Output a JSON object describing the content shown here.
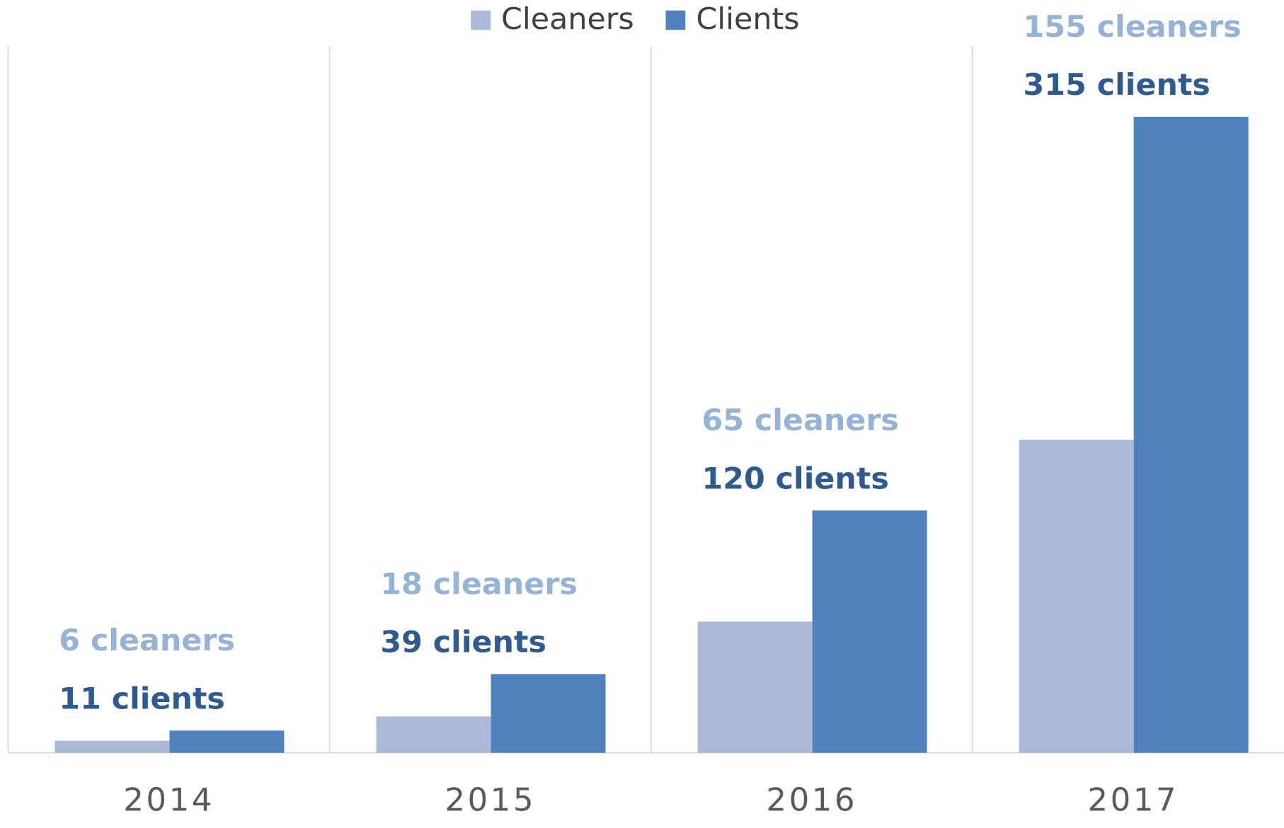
{
  "chart_data": {
    "type": "bar",
    "categories": [
      "2014",
      "2015",
      "2016",
      "2017"
    ],
    "series": [
      {
        "name": "Cleaners",
        "color": "#abbad8",
        "label_color": "#95b3d7",
        "values": [
          6,
          18,
          65,
          155
        ],
        "value_labels": [
          "6 cleaners",
          "18 cleaners",
          "65 cleaners",
          "155 cleaners"
        ]
      },
      {
        "name": "Clients",
        "color": "#4f81bd",
        "label_color": "#2f5a8f",
        "values": [
          11,
          39,
          120,
          315
        ],
        "value_labels": [
          "11 clients",
          "39 clients",
          "120 clients",
          "315 clients"
        ]
      }
    ],
    "ylim": [
      0,
      350
    ],
    "legend": "top"
  }
}
